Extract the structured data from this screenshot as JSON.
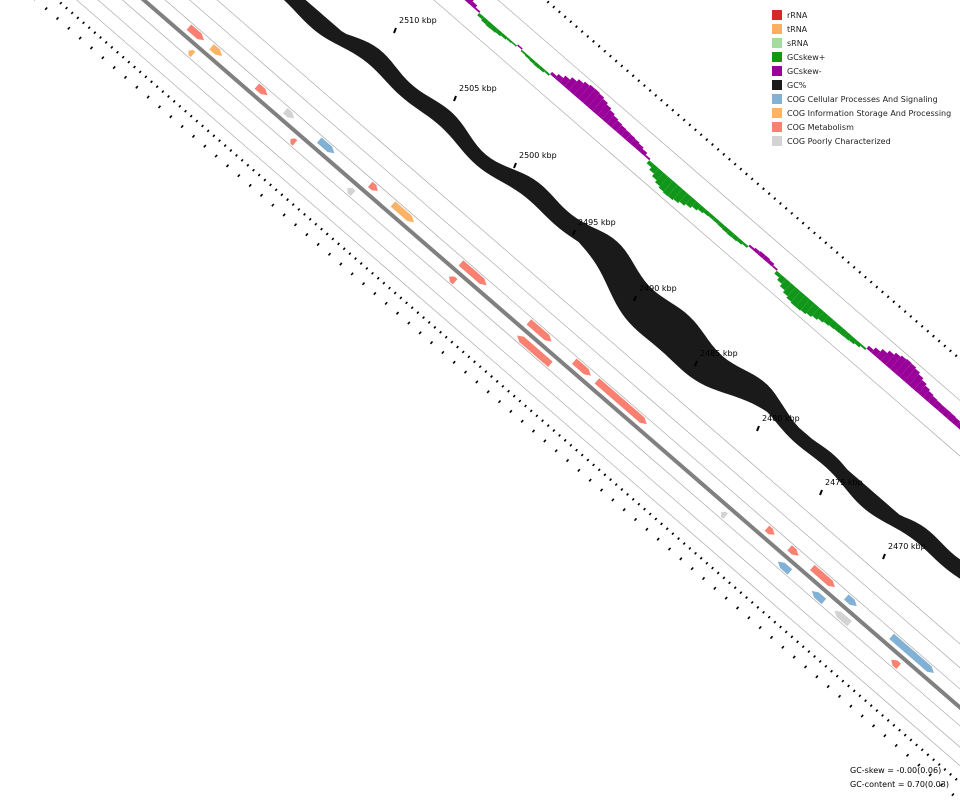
{
  "legend": [
    {
      "label": "rRNA",
      "color": "#d62728"
    },
    {
      "label": "tRNA",
      "color": "#fdae61"
    },
    {
      "label": "sRNA",
      "color": "#a6dba0"
    },
    {
      "label": "GCskew+",
      "color": "#109618"
    },
    {
      "label": "GCskew-",
      "color": "#990099"
    },
    {
      "label": "GC%",
      "color": "#1a1a1a"
    },
    {
      "label": "COG Cellular Processes And Signaling",
      "color": "#82b1d6"
    },
    {
      "label": "COG Information Storage And Processing",
      "color": "#fdb366"
    },
    {
      "label": "COG Metabolism",
      "color": "#fa8072"
    },
    {
      "label": "COG Poorly Characterized",
      "color": "#d3d3d3"
    }
  ],
  "ticks": [
    {
      "label": "2510 kbp"
    },
    {
      "label": "2505 kbp"
    },
    {
      "label": "2500 kbp"
    },
    {
      "label": "2495 kbp"
    },
    {
      "label": "2490 kbp"
    },
    {
      "label": "2485 kbp"
    },
    {
      "label": "2480 kbp"
    },
    {
      "label": "2475 kbp"
    },
    {
      "label": "2470 kbp"
    }
  ],
  "stats": {
    "gc_skew": "GC-skew = -0.00(0.06)",
    "gc_content": "GC-content = 0.70(0.03)"
  },
  "colors": {
    "backbone": "#808080",
    "guide_line": "#a0a0a0",
    "cog_cellular": "#82b1d6",
    "cog_info": "#fdb366",
    "cog_metabolism": "#fa8072",
    "cog_poor": "#d3d3d3",
    "gc_content": "#1a1a1a",
    "gc_skew_pos": "#109618",
    "gc_skew_neg": "#990099"
  },
  "features": {
    "forward": [
      {
        "t": 0.07,
        "len": 14,
        "cat": "cog_cellular"
      },
      {
        "t": 0.11,
        "len": 20,
        "cat": "cog_cellular"
      },
      {
        "t": 0.135,
        "len": 8,
        "cat": "cog_poor"
      },
      {
        "t": 0.15,
        "len": 16,
        "cat": "cog_metabolism"
      },
      {
        "t": 0.17,
        "len": 6,
        "cat": "cog_cellular"
      },
      {
        "t": 0.21,
        "len": 14,
        "cat": "cog_poor"
      },
      {
        "t": 0.26,
        "len": 20,
        "cat": "cog_metabolism"
      },
      {
        "t": 0.28,
        "len": 14,
        "cat": "cog_info"
      },
      {
        "t": 0.32,
        "len": 14,
        "cat": "cog_metabolism"
      },
      {
        "t": 0.345,
        "len": 12,
        "cat": "cog_poor"
      },
      {
        "t": 0.375,
        "len": 20,
        "cat": "cog_cellular"
      },
      {
        "t": 0.42,
        "len": 10,
        "cat": "cog_metabolism"
      },
      {
        "t": 0.44,
        "len": 28,
        "cat": "cog_info"
      },
      {
        "t": 0.5,
        "len": 34,
        "cat": "cog_metabolism"
      },
      {
        "t": 0.56,
        "len": 30,
        "cat": "cog_metabolism"
      },
      {
        "t": 0.6,
        "len": 22,
        "cat": "cog_metabolism"
      },
      {
        "t": 0.62,
        "len": 66,
        "cat": "cog_metabolism"
      },
      {
        "t": 0.77,
        "len": 10,
        "cat": "cog_metabolism"
      },
      {
        "t": 0.79,
        "len": 12,
        "cat": "cog_metabolism"
      },
      {
        "t": 0.81,
        "len": 30,
        "cat": "cog_metabolism"
      },
      {
        "t": 0.84,
        "len": 14,
        "cat": "cog_cellular"
      },
      {
        "t": 0.88,
        "len": 56,
        "cat": "cog_cellular"
      }
    ],
    "reverse": [
      {
        "t": 0.12,
        "len": 12,
        "cat": "cog_cellular"
      },
      {
        "t": 0.19,
        "len": 6,
        "cat": "cog_poor"
      },
      {
        "t": 0.27,
        "len": 6,
        "cat": "cog_info"
      },
      {
        "t": 0.36,
        "len": 6,
        "cat": "cog_metabolism"
      },
      {
        "t": 0.41,
        "len": 8,
        "cat": "cog_poor"
      },
      {
        "t": 0.5,
        "len": 8,
        "cat": "cog_metabolism"
      },
      {
        "t": 0.56,
        "len": 44,
        "cat": "cog_metabolism"
      },
      {
        "t": 0.74,
        "len": 6,
        "cat": "cog_poor"
      },
      {
        "t": 0.79,
        "len": 16,
        "cat": "cog_cellular"
      },
      {
        "t": 0.82,
        "len": 16,
        "cat": "cog_cellular"
      },
      {
        "t": 0.84,
        "len": 20,
        "cat": "cog_poor"
      },
      {
        "t": 0.89,
        "len": 10,
        "cat": "cog_metabolism"
      },
      {
        "t": 0.97,
        "len": 20,
        "cat": "cog_cellular"
      }
    ]
  }
}
